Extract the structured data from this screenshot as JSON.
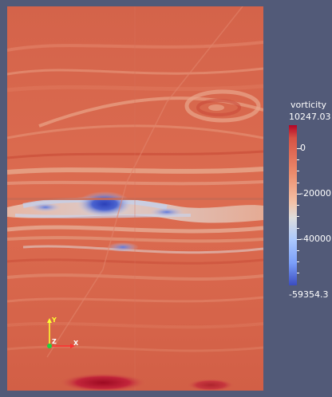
{
  "colorbar": {
    "title": "vorticity",
    "max_label": "10247.03",
    "min_label": "-59354.3",
    "tick_labels": [
      "0",
      "-20000",
      "-40000"
    ],
    "colors": [
      "#b40426",
      "#d65244",
      "#ec8c6c",
      "#f3c1a6",
      "#dcdddd",
      "#aac7fd",
      "#7b9ff9",
      "#3b4cc0"
    ]
  },
  "axes_widget": {
    "y_label": "Y",
    "z_label": "Z",
    "x_label": "X",
    "colors": {
      "x": "#ff3030",
      "y": "#ffff30",
      "z": "#20d040"
    }
  },
  "background_color": "#525a78"
}
